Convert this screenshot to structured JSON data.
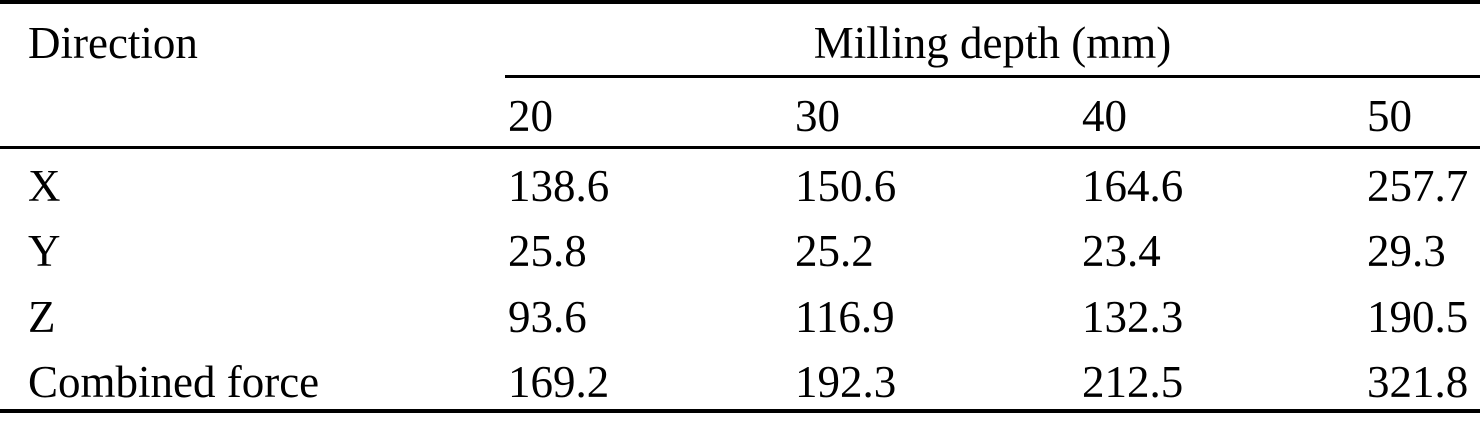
{
  "table": {
    "header": {
      "direction_label": "Direction",
      "group_label": "Milling depth (mm)",
      "columns": [
        "20",
        "30",
        "40",
        "50"
      ]
    },
    "rows": [
      {
        "label": "X",
        "values": [
          "138.6",
          "150.6",
          "164.6",
          "257.7"
        ]
      },
      {
        "label": "Y",
        "values": [
          "25.8",
          "25.2",
          "23.4",
          "29.3"
        ]
      },
      {
        "label": "Z",
        "values": [
          "93.6",
          "116.9",
          "132.3",
          "190.5"
        ]
      },
      {
        "label": "Combined force",
        "values": [
          "169.2",
          "192.3",
          "212.5",
          "321.8"
        ]
      }
    ]
  },
  "colors": {
    "text": "#000000",
    "rule": "#000000",
    "background": "#ffffff"
  },
  "chart_data": {
    "type": "table",
    "title": "Milling depth (mm)",
    "row_header": "Direction",
    "categories": [
      20,
      30,
      40,
      50
    ],
    "series": [
      {
        "name": "X",
        "values": [
          138.6,
          150.6,
          164.6,
          257.7
        ]
      },
      {
        "name": "Y",
        "values": [
          25.8,
          25.2,
          23.4,
          29.3
        ]
      },
      {
        "name": "Z",
        "values": [
          93.6,
          116.9,
          132.3,
          190.5
        ]
      },
      {
        "name": "Combined force",
        "values": [
          169.2,
          192.3,
          212.5,
          321.8
        ]
      }
    ]
  }
}
